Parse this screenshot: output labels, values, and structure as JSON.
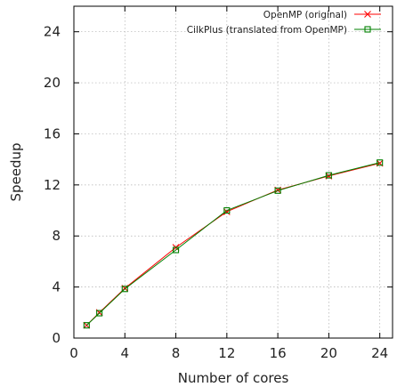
{
  "chart_data": {
    "type": "line",
    "xlabel": "Number of cores",
    "ylabel": "Speedup",
    "xlim": [
      0,
      25
    ],
    "ylim": [
      0,
      26
    ],
    "xticks": [
      0,
      4,
      8,
      12,
      16,
      20,
      24
    ],
    "yticks": [
      0,
      4,
      8,
      12,
      16,
      20,
      24
    ],
    "grid": true,
    "legend_position": "top-right",
    "x": [
      1,
      2,
      4,
      8,
      12,
      16,
      20,
      24
    ],
    "series": [
      {
        "name": "OpenMP (original)",
        "color": "#ff0000",
        "marker": "x",
        "values": [
          1.0,
          2.0,
          3.9,
          7.1,
          9.9,
          11.6,
          12.7,
          13.7
        ]
      },
      {
        "name": "CilkPlus (translated from OpenMP)",
        "color": "#008000",
        "marker": "square",
        "values": [
          1.0,
          1.95,
          3.85,
          6.9,
          10.0,
          11.55,
          12.75,
          13.75
        ]
      }
    ]
  }
}
